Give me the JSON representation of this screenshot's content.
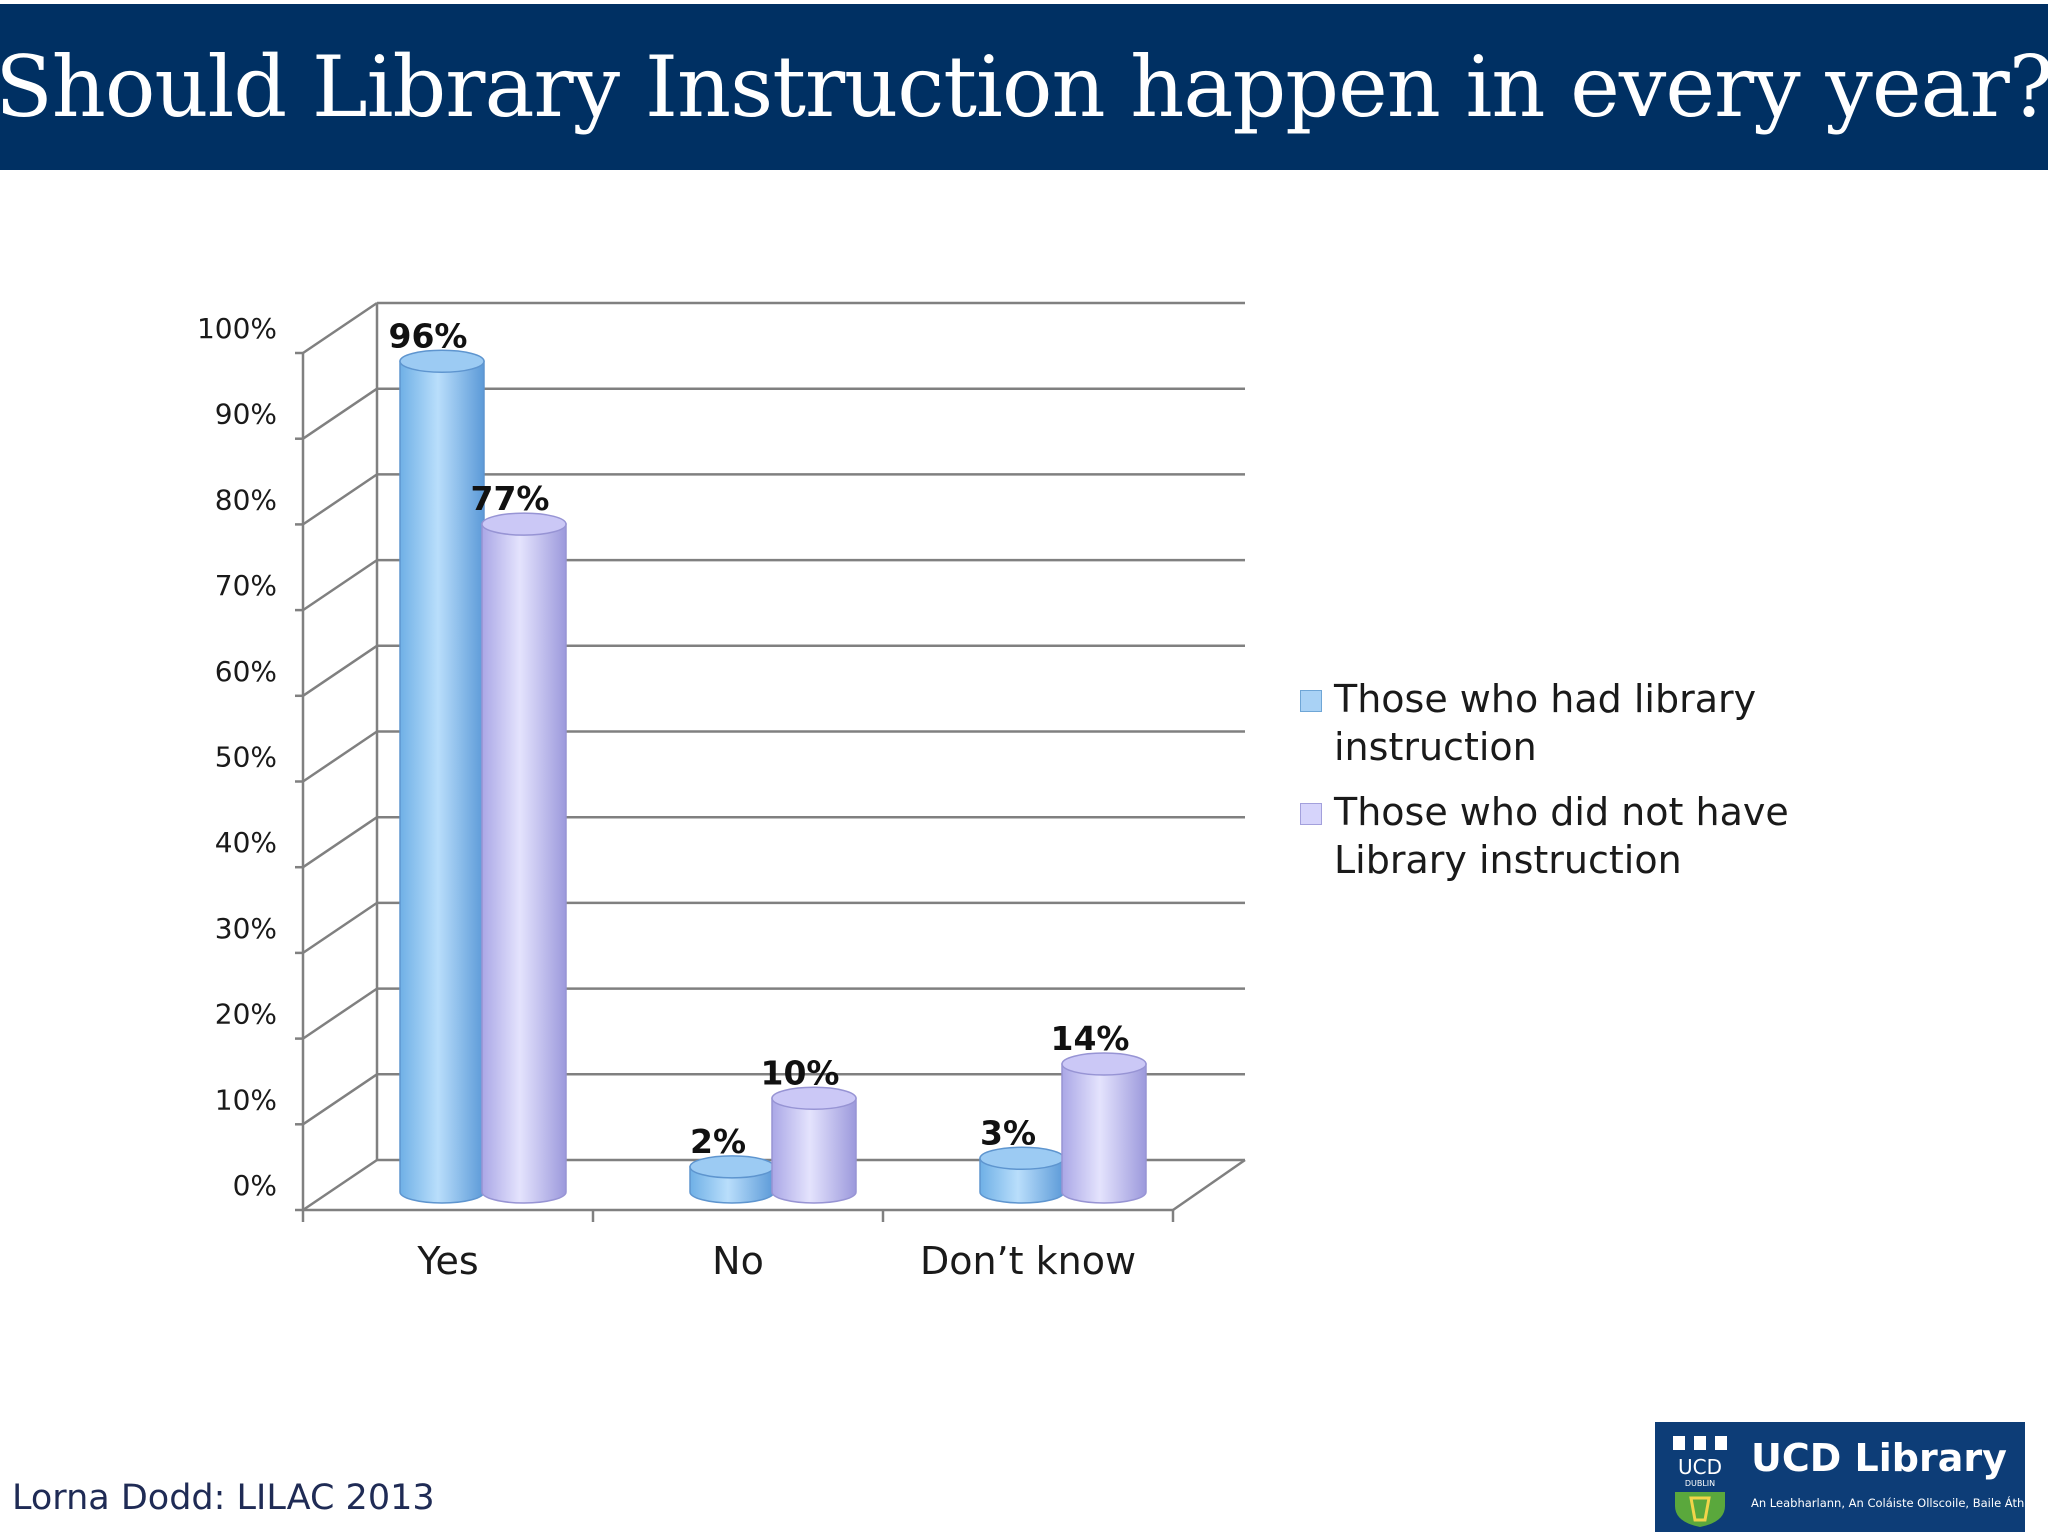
{
  "slide": {
    "title": "Should Library Instruction happen in every year?",
    "credit": "Lorna Dodd: LILAC 2013",
    "logo": {
      "crest_text": "UCD",
      "crest_subtext": "DUBLIN",
      "name": "UCD Library",
      "tagline": "An Leabharlann, An Coláiste Ollscoile, Baile Átha Cliath"
    }
  },
  "chart_data": {
    "type": "bar",
    "categories": [
      "Yes",
      "No",
      "Don’t know"
    ],
    "series": [
      {
        "name": "Those who had library instruction",
        "values": [
          96,
          2,
          3
        ],
        "labels": [
          "96%",
          "2%",
          "3%"
        ],
        "color": "#a9d2f5"
      },
      {
        "name": "Those who did not have Library instruction",
        "values": [
          77,
          10,
          14
        ],
        "labels": [
          "77%",
          "10%",
          "14%"
        ],
        "color": "#d6d4fb"
      }
    ],
    "ylim": [
      0,
      100
    ],
    "yticks": [
      "0%",
      "10%",
      "20%",
      "30%",
      "40%",
      "50%",
      "60%",
      "70%",
      "80%",
      "90%",
      "100%"
    ],
    "grid": true,
    "style": "3d-cylinder",
    "legend_position": "right"
  }
}
